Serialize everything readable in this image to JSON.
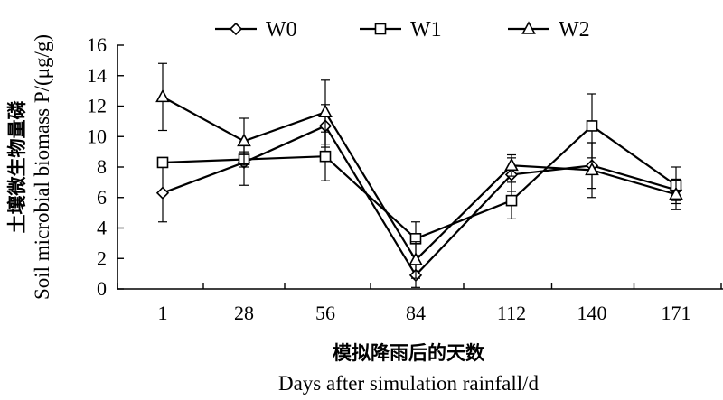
{
  "chart_data": {
    "type": "line",
    "categories": [
      "1",
      "28",
      "56",
      "84",
      "112",
      "140",
      "171"
    ],
    "xlabel_cn": "模拟降雨后的天数",
    "xlabel": "Days after simulation rainfall/d",
    "ylabel_cn": "土壤微生物量磷",
    "ylabel": "Soil microbial biomass P/(μg/g)",
    "ylim": [
      0,
      16
    ],
    "yticks": [
      "0",
      "2",
      "4",
      "6",
      "8",
      "10",
      "12",
      "14",
      "16"
    ],
    "grid": false,
    "legend_position": "top",
    "series": [
      {
        "name": "W0",
        "marker": "diamond",
        "values": [
          6.3,
          8.3,
          10.7,
          0.9,
          7.5,
          8.1,
          6.5
        ],
        "errors": [
          1.9,
          1.5,
          1.4,
          0.8,
          1.1,
          1.5,
          0.7
        ]
      },
      {
        "name": "W1",
        "marker": "square",
        "values": [
          8.3,
          8.5,
          8.7,
          3.3,
          5.8,
          10.7,
          6.8
        ],
        "errors": [
          0.2,
          0.5,
          1.6,
          1.1,
          1.2,
          2.1,
          1.2
        ]
      },
      {
        "name": "W2",
        "marker": "triangle",
        "values": [
          12.6,
          9.7,
          11.6,
          1.9,
          8.1,
          7.8,
          6.2
        ],
        "errors": [
          2.2,
          1.5,
          2.1,
          1.2,
          0.7,
          1.8,
          1.0
        ]
      }
    ]
  }
}
